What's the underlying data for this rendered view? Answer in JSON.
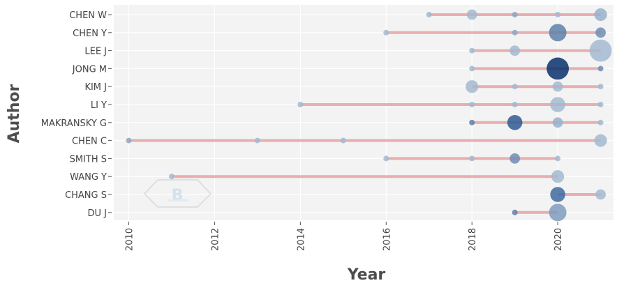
{
  "chart_data": {
    "type": "scatter",
    "xlabel": "Year",
    "ylabel": "Author",
    "xlim": [
      2009.65,
      2021.3
    ],
    "x_ticks": [
      2010,
      2012,
      2014,
      2016,
      2018,
      2020
    ],
    "grid": true,
    "authors": [
      "CHEN W",
      "CHEN Y",
      "LEE J",
      "JONG M",
      "KIM J",
      "LI Y",
      "MAKRANSKY G",
      "CHEN C",
      "SMITH S",
      "WANG Y",
      "CHANG S",
      "DU J"
    ],
    "timelines": [
      {
        "author": "CHEN W",
        "start": 2017,
        "end": 2021
      },
      {
        "author": "CHEN Y",
        "start": 2016,
        "end": 2021
      },
      {
        "author": "LEE J",
        "start": 2018,
        "end": 2021
      },
      {
        "author": "JONG M",
        "start": 2018,
        "end": 2021
      },
      {
        "author": "KIM J",
        "start": 2018,
        "end": 2021
      },
      {
        "author": "LI Y",
        "start": 2014,
        "end": 2021
      },
      {
        "author": "MAKRANSKY G",
        "start": 2018,
        "end": 2021
      },
      {
        "author": "CHEN C",
        "start": 2010,
        "end": 2021
      },
      {
        "author": "SMITH S",
        "start": 2016,
        "end": 2020
      },
      {
        "author": "WANG Y",
        "start": 2011,
        "end": 2020
      },
      {
        "author": "CHANG S",
        "start": 2020,
        "end": 2021
      },
      {
        "author": "DU J",
        "start": 2019,
        "end": 2020
      }
    ],
    "points": [
      {
        "author": "CHEN W",
        "year": 2017,
        "size": 1,
        "color": "#a3b8d0"
      },
      {
        "author": "CHEN W",
        "year": 2018,
        "size": 3,
        "color": "#a3b8d0"
      },
      {
        "author": "CHEN W",
        "year": 2019,
        "size": 1,
        "color": "#8fa6c2"
      },
      {
        "author": "CHEN W",
        "year": 2020,
        "size": 1,
        "color": "#a3b8d0"
      },
      {
        "author": "CHEN W",
        "year": 2021,
        "size": 4,
        "color": "#97b0cb"
      },
      {
        "author": "CHEN Y",
        "year": 2016,
        "size": 1,
        "color": "#a3b8d0"
      },
      {
        "author": "CHEN Y",
        "year": 2019,
        "size": 1,
        "color": "#8fa6c2"
      },
      {
        "author": "CHEN Y",
        "year": 2020,
        "size": 6,
        "color": "#5e80aa"
      },
      {
        "author": "CHEN Y",
        "year": 2021,
        "size": 3,
        "color": "#6f8db4"
      },
      {
        "author": "LEE J",
        "year": 2018,
        "size": 1,
        "color": "#a3b8d0"
      },
      {
        "author": "LEE J",
        "year": 2019,
        "size": 3,
        "color": "#a3b8d0"
      },
      {
        "author": "LEE J",
        "year": 2021,
        "size": 8,
        "color": "#a3b8d0"
      },
      {
        "author": "JONG M",
        "year": 2018,
        "size": 1,
        "color": "#a3b8d0"
      },
      {
        "author": "JONG M",
        "year": 2020,
        "size": 8,
        "color": "#08306b"
      },
      {
        "author": "JONG M",
        "year": 2021,
        "size": 1,
        "color": "#6f8db4"
      },
      {
        "author": "KIM J",
        "year": 2018,
        "size": 4,
        "color": "#a3b8d0"
      },
      {
        "author": "KIM J",
        "year": 2019,
        "size": 1,
        "color": "#a3b8d0"
      },
      {
        "author": "KIM J",
        "year": 2020,
        "size": 3,
        "color": "#a3b8d0"
      },
      {
        "author": "KIM J",
        "year": 2021,
        "size": 1,
        "color": "#a3b8d0"
      },
      {
        "author": "LI Y",
        "year": 2014,
        "size": 1,
        "color": "#a3b8d0"
      },
      {
        "author": "LI Y",
        "year": 2018,
        "size": 1,
        "color": "#a3b8d0"
      },
      {
        "author": "LI Y",
        "year": 2019,
        "size": 1,
        "color": "#a3b8d0"
      },
      {
        "author": "LI Y",
        "year": 2020,
        "size": 5,
        "color": "#a3b8d0"
      },
      {
        "author": "LI Y",
        "year": 2021,
        "size": 1,
        "color": "#a3b8d0"
      },
      {
        "author": "MAKRANSKY G",
        "year": 2018,
        "size": 1,
        "color": "#5e80aa"
      },
      {
        "author": "MAKRANSKY G",
        "year": 2019,
        "size": 5,
        "color": "#2f5a93"
      },
      {
        "author": "MAKRANSKY G",
        "year": 2020,
        "size": 3,
        "color": "#97b0cb"
      },
      {
        "author": "MAKRANSKY G",
        "year": 2021,
        "size": 1,
        "color": "#a3b8d0"
      },
      {
        "author": "CHEN C",
        "year": 2010,
        "size": 1,
        "color": "#8fa6c2"
      },
      {
        "author": "CHEN C",
        "year": 2013,
        "size": 1,
        "color": "#a3b8d0"
      },
      {
        "author": "CHEN C",
        "year": 2015,
        "size": 1,
        "color": "#a3b8d0"
      },
      {
        "author": "CHEN C",
        "year": 2021,
        "size": 4,
        "color": "#a3b8d0"
      },
      {
        "author": "SMITH S",
        "year": 2016,
        "size": 1,
        "color": "#a3b8d0"
      },
      {
        "author": "SMITH S",
        "year": 2018,
        "size": 1,
        "color": "#a3b8d0"
      },
      {
        "author": "SMITH S",
        "year": 2019,
        "size": 3,
        "color": "#6f8db4"
      },
      {
        "author": "SMITH S",
        "year": 2020,
        "size": 1,
        "color": "#a3b8d0"
      },
      {
        "author": "WANG Y",
        "year": 2011,
        "size": 1,
        "color": "#a3b8d0"
      },
      {
        "author": "WANG Y",
        "year": 2020,
        "size": 4,
        "color": "#a3b8d0"
      },
      {
        "author": "CHANG S",
        "year": 2020,
        "size": 5,
        "color": "#3f6aa0"
      },
      {
        "author": "CHANG S",
        "year": 2021,
        "size": 3,
        "color": "#a3b8d0"
      },
      {
        "author": "DU J",
        "year": 2019,
        "size": 1,
        "color": "#5e80aa"
      },
      {
        "author": "DU J",
        "year": 2020,
        "size": 6,
        "color": "#7f9bbd"
      }
    ]
  },
  "colors": {
    "panel_bg": "#f3f3f3",
    "grid": "#ffffff",
    "timeline": "#e8aeb0"
  }
}
